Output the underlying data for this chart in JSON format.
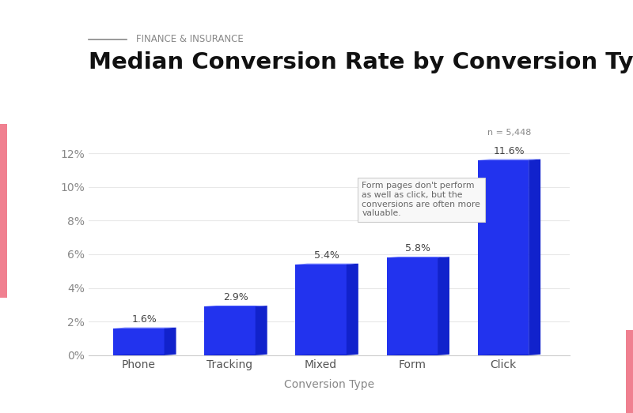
{
  "categories": [
    "Phone",
    "Tracking",
    "Mixed",
    "Form",
    "Click"
  ],
  "values": [
    1.6,
    2.9,
    5.4,
    5.8,
    11.6
  ],
  "bar_front_color": "#2233ee",
  "bar_left_color": "#1122cc",
  "bar_top_color": "#4455ff",
  "title": "Median Conversion Rate by Conversion Type",
  "subtitle": "FINANCE & INSURANCE",
  "xlabel": "Conversion Type",
  "ylim": [
    0,
    13.5
  ],
  "yticks": [
    0,
    2,
    4,
    6,
    8,
    10,
    12
  ],
  "ytick_labels": [
    "0%",
    "2%",
    "4%",
    "6%",
    "8%",
    "10%",
    "12%"
  ],
  "annotation_text": "Form pages don't perform\nas well as click, but the\nconversions are often more\nvaluable.",
  "n_label": "n = 5,448",
  "background_color": "#ffffff",
  "grid_color": "#e8e8e8",
  "title_fontsize": 21,
  "subtitle_fontsize": 8.5,
  "tick_fontsize": 10,
  "label_fontsize": 10,
  "left_accent_color": "#f08090",
  "right_accent_color": "#f08090"
}
